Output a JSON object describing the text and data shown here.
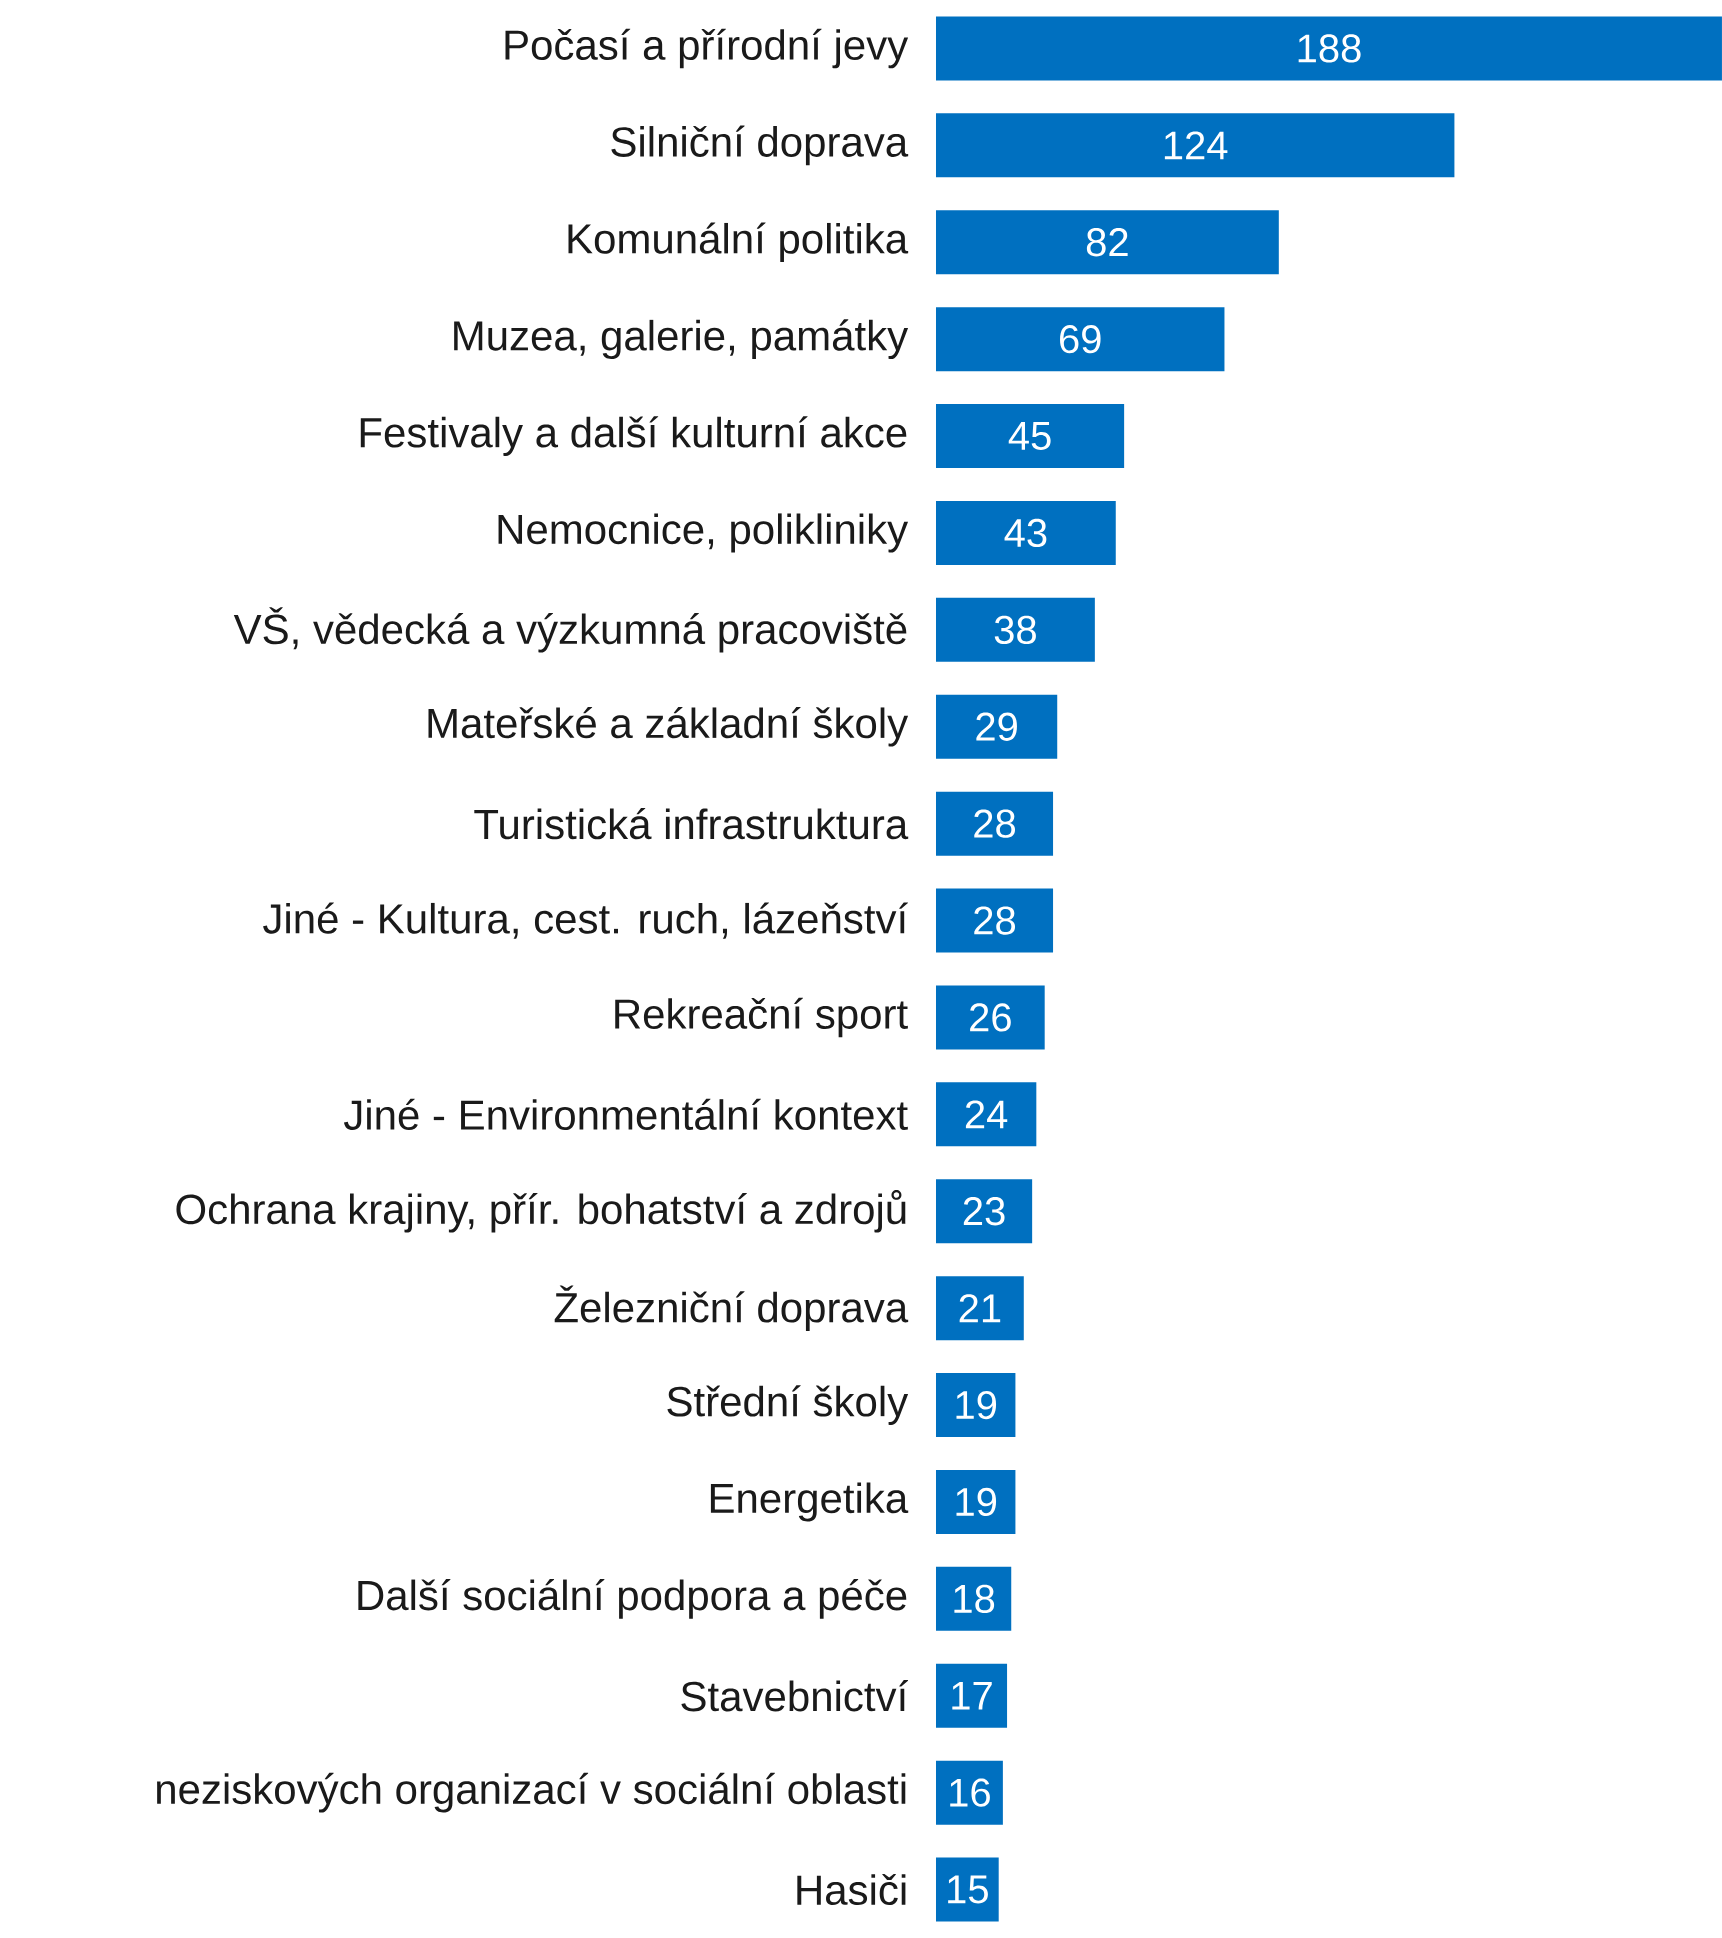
{
  "chart_data": {
    "type": "bar",
    "orientation": "horizontal",
    "color": "#0070c0",
    "data_labels": true,
    "tick_labels": "y",
    "categories": [
      "Počasí a přírodní jevy",
      "Silniční doprava",
      "Komunální politika",
      "Muzea, galerie, památky",
      "Festivaly a další kulturní akce",
      "Nemocnice, polikliniky",
      "VŠ, vědecká a výzkumná pracoviště",
      "Mateřské a základní školy",
      "Turistická infrastruktura",
      "Jiné - Kultura, cest.  ruch, lázeňství",
      "Rekreační sport",
      "Jiné - Environmentální kontext",
      "Ochrana krajiny, přír. bohatství a zdrojů",
      "Železniční doprava",
      "Střední školy",
      "Energetika",
      "Další sociální podpora a péče",
      "Stavebnictví",
      "neziskových organizací v sociální oblasti",
      "Hasiči"
    ],
    "values": [
      188,
      124,
      82,
      69,
      45,
      43,
      38,
      29,
      28,
      28,
      26,
      24,
      23,
      21,
      19,
      19,
      18,
      17,
      16,
      15
    ]
  }
}
